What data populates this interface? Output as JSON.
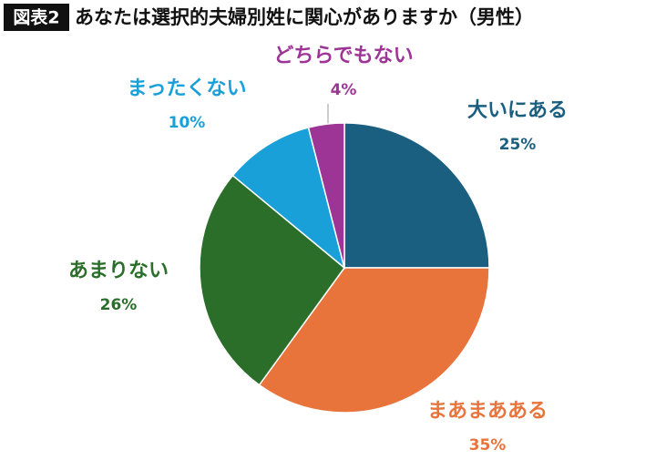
{
  "chart_data": {
    "type": "pie",
    "badge": "図表2",
    "title": "あなたは選択的夫婦別姓に関心がありますか（男性）",
    "categories": [
      "大いにある",
      "まあまあある",
      "あまりない",
      "まったくない",
      "どちらでもない"
    ],
    "values": [
      25,
      35,
      26,
      10,
      4
    ],
    "value_labels": [
      "25%",
      "35%",
      "26%",
      "10%",
      "4%"
    ],
    "colors": [
      "#1b5f80",
      "#e8743b",
      "#2a6e2a",
      "#1aa0d8",
      "#9c3595"
    ]
  }
}
